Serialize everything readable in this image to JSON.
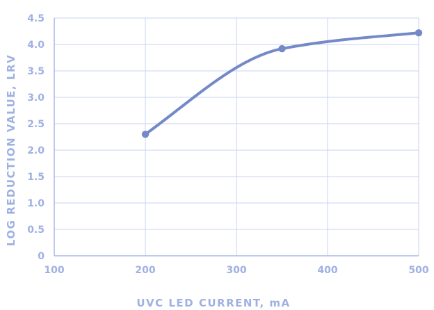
{
  "chart_data": {
    "type": "line",
    "title": "",
    "xlabel": "UVC LED CURRENT, mA",
    "ylabel": "LOG REDUCTION VALUE, LRV",
    "xlim": [
      100,
      500
    ],
    "ylim": [
      0,
      4.5
    ],
    "x_ticks": [
      100,
      200,
      300,
      400,
      500
    ],
    "x_tick_labels": [
      "100",
      "200",
      "300",
      "400",
      "500"
    ],
    "y_ticks": [
      0,
      0.5,
      1.0,
      1.5,
      2.0,
      2.5,
      3.0,
      3.5,
      4.0,
      4.5
    ],
    "y_tick_labels": [
      "0",
      "0.5",
      "1.0",
      "1.5",
      "2.0",
      "2.5",
      "3.0",
      "3.5",
      "4.0",
      "4.5"
    ],
    "grid": true,
    "series": [
      {
        "color": "#7389c8",
        "x": [
          200,
          350,
          500
        ],
        "y": [
          2.3,
          3.92,
          4.22
        ]
      }
    ],
    "colors": {
      "line": "#7389c8",
      "grid": "#c9d3f0",
      "axis": "#a9b9e6",
      "text": "#9fb1e2"
    }
  }
}
